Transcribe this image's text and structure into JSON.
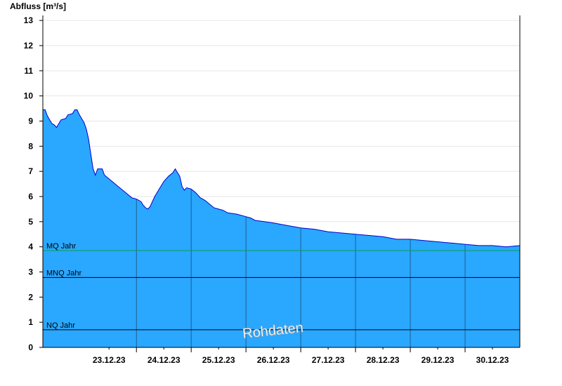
{
  "chart_data": {
    "type": "area",
    "ylabel": "Abfluss [m³/s]",
    "ylim": [
      0,
      13.2
    ],
    "yticks": [
      0,
      1,
      2,
      3,
      4,
      5,
      6,
      7,
      8,
      9,
      10,
      11,
      12,
      13
    ],
    "grid": true,
    "xlim": [
      "2023-12-22T07:00",
      "2023-12-31T00:00"
    ],
    "xticks": [
      {
        "label": "23.12.23",
        "value": "2023-12-23T12:00"
      },
      {
        "label": "24.12.23",
        "value": "2023-12-24T12:00"
      },
      {
        "label": "25.12.23",
        "value": "2023-12-25T12:00"
      },
      {
        "label": "26.12.23",
        "value": "2023-12-26T12:00"
      },
      {
        "label": "27.12.23",
        "value": "2023-12-27T12:00"
      },
      {
        "label": "28.12.23",
        "value": "2023-12-28T12:00"
      },
      {
        "label": "29.12.23",
        "value": "2023-12-29T12:00"
      },
      {
        "label": "30.12.23",
        "value": "2023-12-30T12:00"
      }
    ],
    "day_boundaries": [
      "2023-12-24T00:00",
      "2023-12-25T00:00",
      "2023-12-26T00:00",
      "2023-12-27T00:00",
      "2023-12-28T00:00",
      "2023-12-29T00:00",
      "2023-12-30T00:00"
    ],
    "reference_lines": [
      {
        "label": "MQ Jahr",
        "value": 3.85,
        "color": "#00a050"
      },
      {
        "label": "MNQ Jahr",
        "value": 2.78,
        "color": "#000000"
      },
      {
        "label": "NQ Jahr",
        "value": 0.7,
        "color": "#000000"
      }
    ],
    "watermark": "Rohdaten",
    "fill_color": "#2aa7ff",
    "line_color": "#0000cc",
    "series": [
      {
        "points": [
          [
            "2023-12-22T07:00",
            9.45
          ],
          [
            "2023-12-22T08:00",
            9.45
          ],
          [
            "2023-12-22T09:00",
            9.2
          ],
          [
            "2023-12-22T10:00",
            9.05
          ],
          [
            "2023-12-22T11:00",
            8.9
          ],
          [
            "2023-12-22T12:00",
            8.85
          ],
          [
            "2023-12-22T13:00",
            8.75
          ],
          [
            "2023-12-22T14:00",
            8.9
          ],
          [
            "2023-12-22T15:00",
            9.05
          ],
          [
            "2023-12-22T17:00",
            9.1
          ],
          [
            "2023-12-22T18:00",
            9.25
          ],
          [
            "2023-12-22T20:00",
            9.3
          ],
          [
            "2023-12-22T21:00",
            9.45
          ],
          [
            "2023-12-22T22:00",
            9.45
          ],
          [
            "2023-12-22T23:00",
            9.25
          ],
          [
            "2023-12-23T00:00",
            9.1
          ],
          [
            "2023-12-23T01:00",
            8.95
          ],
          [
            "2023-12-23T02:00",
            8.7
          ],
          [
            "2023-12-23T03:00",
            8.3
          ],
          [
            "2023-12-23T04:00",
            7.7
          ],
          [
            "2023-12-23T05:00",
            7.1
          ],
          [
            "2023-12-23T06:00",
            6.85
          ],
          [
            "2023-12-23T07:00",
            7.1
          ],
          [
            "2023-12-23T09:00",
            7.1
          ],
          [
            "2023-12-23T10:00",
            6.85
          ],
          [
            "2023-12-23T12:00",
            6.7
          ],
          [
            "2023-12-23T14:00",
            6.55
          ],
          [
            "2023-12-23T16:00",
            6.4
          ],
          [
            "2023-12-23T18:00",
            6.25
          ],
          [
            "2023-12-23T20:00",
            6.1
          ],
          [
            "2023-12-23T22:00",
            5.95
          ],
          [
            "2023-12-24T00:00",
            5.9
          ],
          [
            "2023-12-24T02:00",
            5.8
          ],
          [
            "2023-12-24T03:00",
            5.65
          ],
          [
            "2023-12-24T04:00",
            5.55
          ],
          [
            "2023-12-24T05:00",
            5.5
          ],
          [
            "2023-12-24T06:00",
            5.6
          ],
          [
            "2023-12-24T07:00",
            5.8
          ],
          [
            "2023-12-24T08:00",
            6.0
          ],
          [
            "2023-12-24T10:00",
            6.3
          ],
          [
            "2023-12-24T12:00",
            6.6
          ],
          [
            "2023-12-24T14:00",
            6.8
          ],
          [
            "2023-12-24T16:00",
            6.95
          ],
          [
            "2023-12-24T17:00",
            7.1
          ],
          [
            "2023-12-24T18:00",
            6.95
          ],
          [
            "2023-12-24T19:00",
            6.8
          ],
          [
            "2023-12-24T20:00",
            6.4
          ],
          [
            "2023-12-24T21:00",
            6.25
          ],
          [
            "2023-12-24T22:00",
            6.35
          ],
          [
            "2023-12-25T00:00",
            6.3
          ],
          [
            "2023-12-25T02:00",
            6.15
          ],
          [
            "2023-12-25T04:00",
            5.95
          ],
          [
            "2023-12-25T06:00",
            5.85
          ],
          [
            "2023-12-25T08:00",
            5.7
          ],
          [
            "2023-12-25T10:00",
            5.55
          ],
          [
            "2023-12-25T12:00",
            5.5
          ],
          [
            "2023-12-25T14:00",
            5.45
          ],
          [
            "2023-12-25T16:00",
            5.35
          ],
          [
            "2023-12-25T20:00",
            5.3
          ],
          [
            "2023-12-26T00:00",
            5.2
          ],
          [
            "2023-12-26T02:00",
            5.15
          ],
          [
            "2023-12-26T04:00",
            5.05
          ],
          [
            "2023-12-26T08:00",
            5.0
          ],
          [
            "2023-12-26T12:00",
            4.95
          ],
          [
            "2023-12-26T18:00",
            4.85
          ],
          [
            "2023-12-27T00:00",
            4.75
          ],
          [
            "2023-12-27T06:00",
            4.7
          ],
          [
            "2023-12-27T12:00",
            4.6
          ],
          [
            "2023-12-27T18:00",
            4.55
          ],
          [
            "2023-12-28T00:00",
            4.5
          ],
          [
            "2023-12-28T06:00",
            4.45
          ],
          [
            "2023-12-28T12:00",
            4.4
          ],
          [
            "2023-12-28T18:00",
            4.3
          ],
          [
            "2023-12-29T00:00",
            4.3
          ],
          [
            "2023-12-29T06:00",
            4.25
          ],
          [
            "2023-12-29T12:00",
            4.2
          ],
          [
            "2023-12-29T18:00",
            4.15
          ],
          [
            "2023-12-30T00:00",
            4.1
          ],
          [
            "2023-12-30T06:00",
            4.05
          ],
          [
            "2023-12-30T12:00",
            4.05
          ],
          [
            "2023-12-30T18:00",
            4.0
          ],
          [
            "2023-12-31T00:00",
            4.05
          ]
        ]
      }
    ]
  }
}
